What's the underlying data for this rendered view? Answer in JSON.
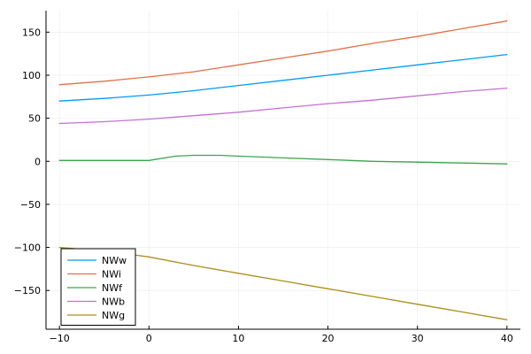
{
  "chart_data": {
    "type": "line",
    "title": "",
    "xlabel": "",
    "ylabel": "",
    "xlim": [
      -11.5,
      41.5
    ],
    "ylim": [
      -195,
      175
    ],
    "x_ticks": [
      -10,
      0,
      10,
      20,
      30,
      40
    ],
    "y_ticks": [
      -150,
      -100,
      -50,
      0,
      50,
      100,
      150
    ],
    "grid": true,
    "legend_position": "bottom-left",
    "series": [
      {
        "name": "NWw",
        "color": "#009AFA",
        "x": [
          -10,
          -5,
          0,
          5,
          10,
          15,
          20,
          25,
          30,
          35,
          40
        ],
        "y": [
          70,
          73,
          77,
          82,
          88,
          94,
          100,
          106,
          112,
          118,
          124
        ]
      },
      {
        "name": "NWi",
        "color": "#E36F47",
        "x": [
          -10,
          -5,
          0,
          5,
          10,
          15,
          20,
          25,
          30,
          35,
          40
        ],
        "y": [
          89,
          93,
          98,
          104,
          112,
          120,
          128,
          137,
          145,
          154,
          163
        ]
      },
      {
        "name": "NWf",
        "color": "#3EA44E",
        "x": [
          -10,
          -5,
          0,
          3,
          5,
          8,
          10,
          15,
          20,
          25,
          30,
          35,
          40
        ],
        "y": [
          1,
          1,
          1,
          6,
          7,
          7,
          6,
          4,
          2,
          0,
          -1,
          -2,
          -3
        ]
      },
      {
        "name": "NWb",
        "color": "#C371D2",
        "x": [
          -10,
          -5,
          0,
          5,
          10,
          15,
          20,
          25,
          30,
          35,
          40
        ],
        "y": [
          44,
          46,
          49,
          53,
          57,
          62,
          67,
          71,
          76,
          81,
          85
        ]
      },
      {
        "name": "NWg",
        "color": "#AC8E18",
        "x": [
          -10,
          -5,
          0,
          5,
          10,
          15,
          20,
          25,
          30,
          35,
          40
        ],
        "y": [
          -100,
          -104,
          -111,
          -121,
          -130,
          -139,
          -148,
          -157,
          -166,
          -175,
          -184
        ]
      }
    ]
  }
}
